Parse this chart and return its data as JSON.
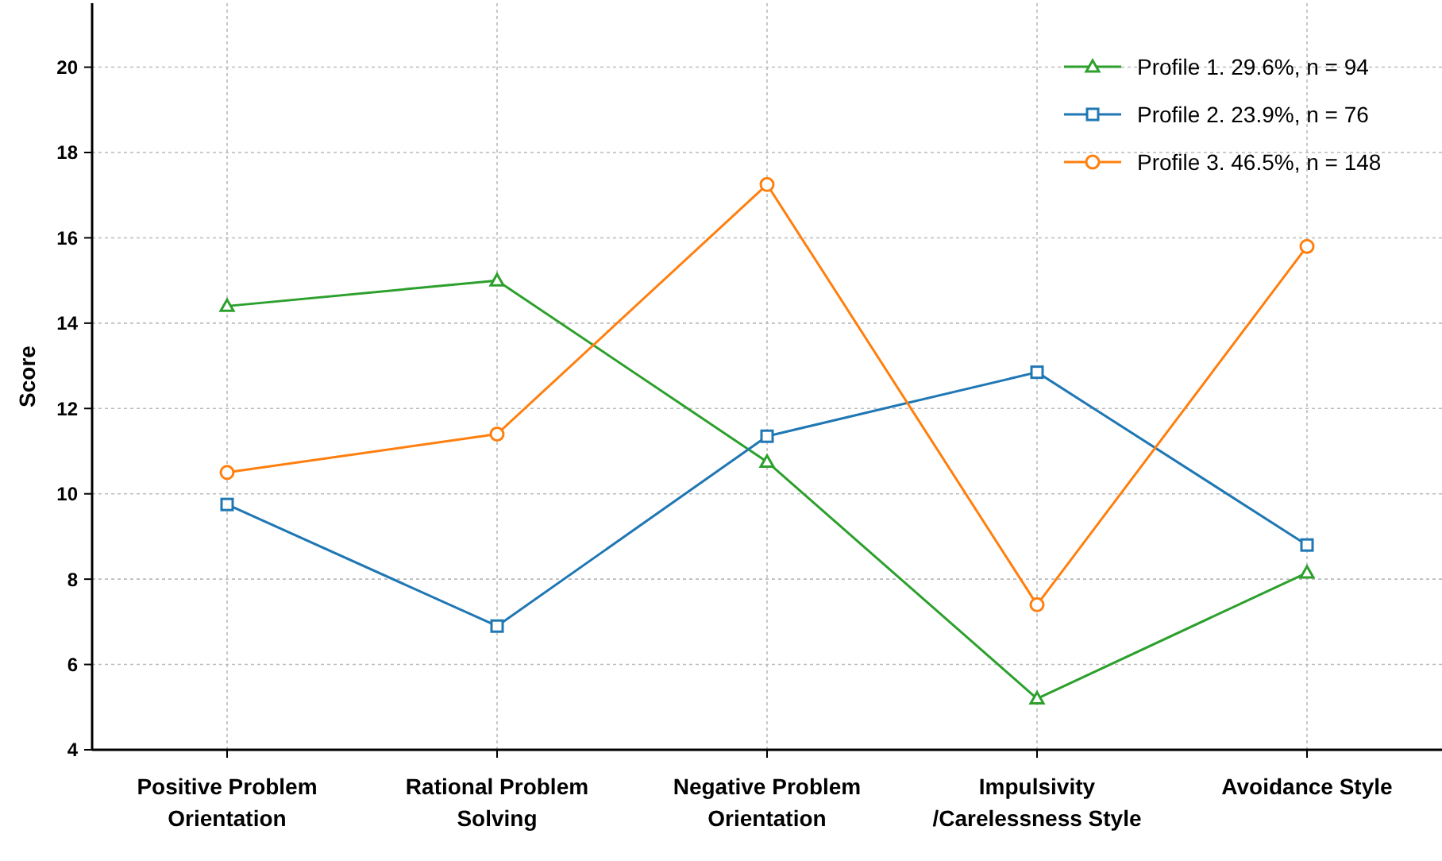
{
  "chart_data": {
    "type": "line",
    "ylabel": "Score",
    "categories": [
      "Positive Problem Orientation",
      "Rational Problem Solving",
      "Negative Problem Orientation",
      "Impulsivity /Carelessness Style",
      "Avoidance Style"
    ],
    "series": [
      {
        "name": "Profile 1. 29.6%, n = 94",
        "color": "#2ca02c",
        "marker": "triangle",
        "values": [
          14.4,
          15.0,
          10.75,
          5.2,
          8.15
        ]
      },
      {
        "name": "Profile 2. 23.9%, n = 76",
        "color": "#1f77b4",
        "marker": "square",
        "values": [
          9.75,
          6.9,
          11.35,
          12.85,
          8.8
        ]
      },
      {
        "name": "Profile 3. 46.5%, n = 148",
        "color": "#ff7f0e",
        "marker": "circle",
        "values": [
          10.5,
          11.4,
          17.25,
          7.4,
          15.8
        ]
      }
    ],
    "ylim": [
      4,
      21.5
    ],
    "yticks": [
      4,
      6,
      8,
      10,
      12,
      14,
      16,
      18,
      20
    ],
    "grid": true,
    "legend": "top right",
    "line_style": "solid"
  }
}
